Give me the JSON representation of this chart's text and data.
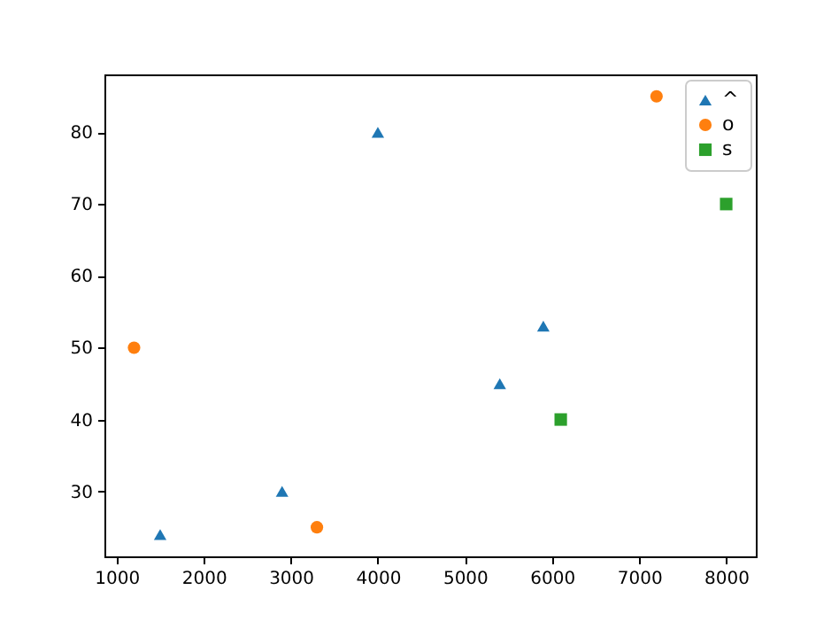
{
  "chart_data": {
    "type": "scatter",
    "xlim": [
      860,
      8340
    ],
    "ylim": [
      20.95,
      88.05
    ],
    "xticks": [
      1000,
      2000,
      3000,
      4000,
      5000,
      6000,
      7000,
      8000
    ],
    "yticks": [
      30,
      40,
      50,
      60,
      70,
      80
    ],
    "grid": false,
    "legend": "top right",
    "series": [
      {
        "name": "^",
        "color": "#1f77b4",
        "marker": "triangle",
        "x": [
          1500,
          2900,
          4000,
          5400,
          5900
        ],
        "values": [
          24,
          30,
          80,
          45,
          53
        ]
      },
      {
        "name": "o",
        "color": "#ff7f0e",
        "marker": "circle",
        "x": [
          1200,
          3300,
          7200
        ],
        "values": [
          50,
          25,
          85
        ]
      },
      {
        "name": "s",
        "color": "#2ca02c",
        "marker": "square",
        "x": [
          6100,
          8000
        ],
        "values": [
          40,
          70
        ]
      }
    ]
  }
}
